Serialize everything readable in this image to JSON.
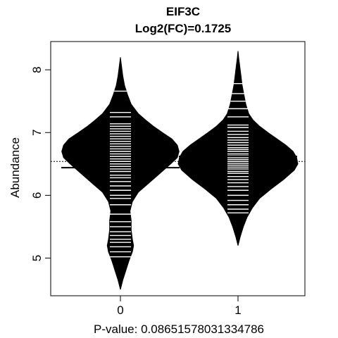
{
  "chart_data": {
    "type": "beanplot",
    "title": "EIF3C",
    "subtitle": "Log2(FC)=0.1725",
    "xlabel": "P-value: 0.08651578031334786",
    "ylabel": "Abundance",
    "categories": [
      "0",
      "1"
    ],
    "ylim": [
      4.4,
      8.45
    ],
    "yticks": [
      5,
      6,
      7,
      8
    ],
    "overall_mean": 6.54,
    "groups": [
      {
        "name": "0",
        "mean": 6.44,
        "density": [
          [
            4.5,
            0.0
          ],
          [
            4.65,
            0.04
          ],
          [
            4.8,
            0.09
          ],
          [
            4.95,
            0.14
          ],
          [
            5.1,
            0.2
          ],
          [
            5.2,
            0.22
          ],
          [
            5.3,
            0.2
          ],
          [
            5.45,
            0.18
          ],
          [
            5.6,
            0.18
          ],
          [
            5.75,
            0.16
          ],
          [
            5.9,
            0.2
          ],
          [
            6.05,
            0.3
          ],
          [
            6.2,
            0.48
          ],
          [
            6.35,
            0.66
          ],
          [
            6.5,
            0.84
          ],
          [
            6.6,
            0.95
          ],
          [
            6.7,
            0.98
          ],
          [
            6.8,
            0.95
          ],
          [
            6.9,
            0.86
          ],
          [
            7.0,
            0.7
          ],
          [
            7.1,
            0.55
          ],
          [
            7.2,
            0.42
          ],
          [
            7.3,
            0.3
          ],
          [
            7.45,
            0.18
          ],
          [
            7.6,
            0.12
          ],
          [
            7.75,
            0.07
          ],
          [
            7.9,
            0.04
          ],
          [
            8.05,
            0.02
          ],
          [
            8.2,
            0.0
          ]
        ],
        "observations": [
          5.02,
          5.1,
          5.18,
          5.25,
          5.3,
          5.36,
          5.42,
          5.5,
          5.58,
          5.7,
          5.85,
          5.95,
          6.0,
          6.08,
          6.15,
          6.22,
          6.28,
          6.32,
          6.38,
          6.42,
          6.46,
          6.5,
          6.54,
          6.58,
          6.62,
          6.66,
          6.7,
          6.74,
          6.78,
          6.82,
          6.86,
          6.9,
          6.94,
          6.98,
          7.02,
          7.06,
          7.1,
          7.14,
          7.25,
          7.32,
          7.66
        ]
      },
      {
        "name": "1",
        "mean": 6.62,
        "density": [
          [
            5.2,
            0.0
          ],
          [
            5.35,
            0.04
          ],
          [
            5.5,
            0.09
          ],
          [
            5.65,
            0.15
          ],
          [
            5.8,
            0.24
          ],
          [
            5.95,
            0.36
          ],
          [
            6.1,
            0.55
          ],
          [
            6.25,
            0.76
          ],
          [
            6.4,
            0.94
          ],
          [
            6.5,
            1.0
          ],
          [
            6.6,
            0.98
          ],
          [
            6.7,
            0.92
          ],
          [
            6.8,
            0.8
          ],
          [
            6.9,
            0.65
          ],
          [
            7.0,
            0.5
          ],
          [
            7.1,
            0.36
          ],
          [
            7.2,
            0.25
          ],
          [
            7.3,
            0.18
          ],
          [
            7.45,
            0.13
          ],
          [
            7.6,
            0.1
          ],
          [
            7.75,
            0.07
          ],
          [
            7.9,
            0.05
          ],
          [
            8.05,
            0.03
          ],
          [
            8.2,
            0.01
          ],
          [
            8.3,
            0.0
          ]
        ],
        "observations": [
          5.72,
          5.78,
          5.85,
          5.92,
          6.0,
          6.08,
          6.14,
          6.2,
          6.25,
          6.3,
          6.35,
          6.38,
          6.42,
          6.45,
          6.48,
          6.51,
          6.54,
          6.57,
          6.6,
          6.63,
          6.66,
          6.7,
          6.73,
          6.76,
          6.8,
          6.84,
          6.88,
          6.92,
          6.97,
          7.02,
          7.08,
          7.12,
          7.25,
          7.38,
          7.5,
          7.62,
          7.78
        ]
      }
    ],
    "colors": {
      "bean": "#000000",
      "lines": "#ffffff",
      "frame": "#000000"
    }
  }
}
